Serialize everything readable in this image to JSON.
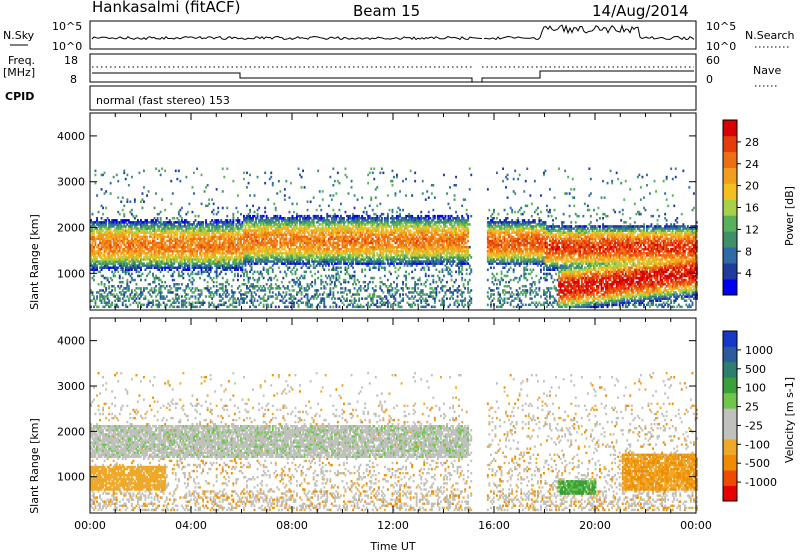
{
  "header": {
    "station": "Hankasalmi (fitACF)",
    "beam": "Beam 15",
    "date": "14/Aug/2014"
  },
  "top_panels": {
    "nsky_label": "N.Sky",
    "nsky_ticks": [
      "10^5",
      "10^0"
    ],
    "nsearch_label": "N.Search",
    "nsearch_ticks": [
      "10^5",
      "10^0"
    ],
    "freq_label_1": "Freq.",
    "freq_label_2": "[MHz]",
    "freq_ticks": [
      "18",
      "8"
    ],
    "nave_label": "Nave",
    "nave_ticks": [
      "60",
      "0"
    ],
    "cpid_label": "CPID",
    "cpid_text": "normal (fast stereo) 153"
  },
  "colors": {
    "power_scale": [
      "#0000ee",
      "#1e3c9e",
      "#2e6aa6",
      "#3f8f6a",
      "#58b05a",
      "#a8d048",
      "#f4c020",
      "#f39d1e",
      "#ee6e14",
      "#e63c0c",
      "#d80000"
    ],
    "velocity_scale": [
      "#e80000",
      "#ee4a00",
      "#f08c00",
      "#f0a828",
      "#c0c0bc",
      "#c0c0bc",
      "#6ec64a",
      "#3aa03a",
      "#2e7e6e",
      "#2c5c9c",
      "#1838c8"
    ]
  },
  "chart_data": [
    {
      "type": "heatmap",
      "title": "",
      "xlabel": "",
      "ylabel": "Slant Range [km]",
      "x_ticks": [
        "00:00",
        "04:00",
        "08:00",
        "12:00",
        "16:00",
        "20:00",
        "00:00"
      ],
      "y_ticks": [
        "1000",
        "2000",
        "3000",
        "4000"
      ],
      "ylim": [
        200,
        4500
      ],
      "colorbar": {
        "label": "Power [dB]",
        "ticks": [
          "4",
          "8",
          "12",
          "16",
          "20",
          "24",
          "28"
        ],
        "range": [
          0,
          32
        ]
      },
      "data_gap_hours": [
        15.1,
        15.7
      ],
      "echo_bands": [
        {
          "start_hour": 0,
          "end_hour": 6,
          "min_km": 1400,
          "max_km": 1800,
          "peak_db": 24
        },
        {
          "start_hour": 6,
          "end_hour": 15,
          "min_km": 1500,
          "max_km": 1900,
          "peak_db": 24
        },
        {
          "start_hour": 15.7,
          "end_hour": 18,
          "min_km": 1500,
          "max_km": 1800,
          "peak_db": 26
        },
        {
          "start_hour": 18,
          "end_hour": 24,
          "min_km": 1400,
          "max_km": 1700,
          "peak_db": 28
        },
        {
          "start_hour": 18.5,
          "end_hour": 24,
          "min_km": 500,
          "max_km": 1100,
          "peak_db": 30
        }
      ]
    },
    {
      "type": "heatmap",
      "title": "",
      "xlabel": "Time UT",
      "ylabel": "Slant Range [km]",
      "x_ticks": [
        "00:00",
        "04:00",
        "08:00",
        "12:00",
        "16:00",
        "20:00",
        "00:00"
      ],
      "y_ticks": [
        "1000",
        "2000",
        "3000",
        "4000"
      ],
      "ylim": [
        200,
        4500
      ],
      "colorbar": {
        "label": "Velocity [m s-1]",
        "ticks": [
          "-1000",
          "-500",
          "-100",
          "-25",
          "25",
          "100",
          "500",
          "1000"
        ]
      },
      "data_gap_hours": [
        15.1,
        15.7
      ],
      "velocity_regions": [
        {
          "start_hour": 0,
          "end_hour": 15,
          "min_km": 1400,
          "max_km": 2100,
          "velocity_ms": 0
        },
        {
          "start_hour": 0,
          "end_hour": 3,
          "min_km": 700,
          "max_km": 1200,
          "velocity_ms": -150
        },
        {
          "start_hour": 18.5,
          "end_hour": 20,
          "min_km": 600,
          "max_km": 900,
          "velocity_ms": 120
        },
        {
          "start_hour": 21,
          "end_hour": 24,
          "min_km": 700,
          "max_km": 1500,
          "velocity_ms": -200
        }
      ]
    }
  ]
}
